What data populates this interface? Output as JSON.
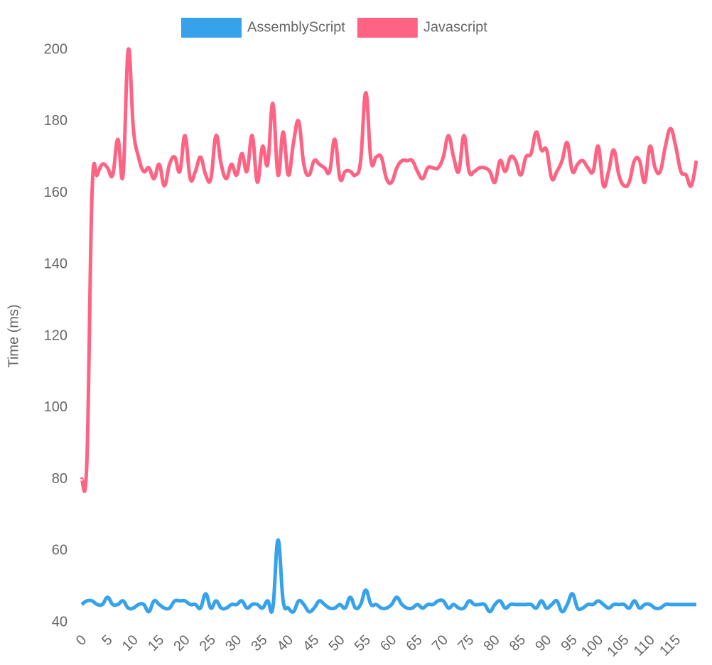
{
  "chart_data": {
    "type": "line",
    "y_label": "Time (ms)",
    "x": [
      0,
      1,
      2,
      3,
      4,
      5,
      6,
      7,
      8,
      9,
      10,
      11,
      12,
      13,
      14,
      15,
      16,
      17,
      18,
      19,
      20,
      21,
      22,
      23,
      24,
      25,
      26,
      27,
      28,
      29,
      30,
      31,
      32,
      33,
      34,
      35,
      36,
      37,
      38,
      39,
      40,
      41,
      42,
      43,
      44,
      45,
      46,
      47,
      48,
      49,
      50,
      51,
      52,
      53,
      54,
      55,
      56,
      57,
      58,
      59,
      60,
      61,
      62,
      63,
      64,
      65,
      66,
      67,
      68,
      69,
      70,
      71,
      72,
      73,
      74,
      75,
      76,
      77,
      78,
      79,
      80,
      81,
      82,
      83,
      84,
      85,
      86,
      87,
      88,
      89,
      90,
      91,
      92,
      93,
      94,
      95,
      96,
      97,
      98,
      99,
      100,
      101,
      102,
      103,
      104,
      105,
      106,
      107,
      108,
      109,
      110,
      111,
      112,
      113,
      114,
      115,
      116,
      117,
      118,
      119
    ],
    "xlim": [
      0,
      119
    ],
    "xticks": [
      0,
      5,
      10,
      15,
      20,
      25,
      30,
      35,
      40,
      45,
      50,
      55,
      60,
      65,
      70,
      75,
      80,
      85,
      90,
      95,
      100,
      105,
      110,
      115
    ],
    "ylim": [
      40,
      200
    ],
    "yticks": [
      40,
      60,
      80,
      100,
      120,
      140,
      160,
      180,
      200
    ],
    "grid": false,
    "legend": "top",
    "series": [
      {
        "name": "AssemblyScript",
        "color": "#36a2eb",
        "values": [
          45,
          46,
          46,
          45,
          45,
          47,
          45,
          45,
          46,
          44,
          44,
          45,
          45,
          43,
          46,
          45,
          44,
          44,
          46,
          46,
          46,
          45,
          45,
          44,
          48,
          44,
          46,
          44,
          44,
          45,
          45,
          46,
          44,
          45,
          45,
          44,
          46,
          44,
          63,
          46,
          44,
          43,
          46,
          45,
          43,
          44,
          46,
          45,
          44,
          44,
          45,
          44,
          47,
          44,
          45,
          49,
          45,
          45,
          44,
          44,
          45,
          47,
          45,
          44,
          44,
          45,
          44,
          45,
          45,
          46,
          46,
          44,
          45,
          44,
          44,
          46,
          45,
          45,
          45,
          43,
          45,
          46,
          44,
          45,
          45,
          45,
          45,
          45,
          44,
          46,
          44,
          45,
          46,
          43,
          45,
          48,
          44,
          44,
          45,
          45,
          46,
          45,
          44,
          45,
          45,
          45,
          44,
          46,
          44,
          45,
          45,
          44,
          44,
          45,
          45,
          45,
          45,
          45,
          45,
          45
        ]
      },
      {
        "name": "Javascript",
        "color": "#ff6384",
        "values": [
          80,
          85,
          160,
          165,
          168,
          167,
          165,
          175,
          165,
          200,
          178,
          170,
          166,
          167,
          164,
          168,
          162,
          168,
          170,
          166,
          176,
          164,
          166,
          170,
          165,
          164,
          176,
          168,
          164,
          168,
          165,
          171,
          166,
          176,
          163,
          173,
          168,
          185,
          165,
          177,
          165,
          174,
          180,
          168,
          165,
          169,
          168,
          167,
          166,
          175,
          164,
          166,
          166,
          165,
          169,
          188,
          169,
          170,
          170,
          164,
          163,
          167,
          169,
          169,
          169,
          166,
          164,
          167,
          167,
          167,
          170,
          176,
          170,
          166,
          176,
          166,
          166,
          167,
          167,
          166,
          163,
          169,
          166,
          170,
          169,
          165,
          170,
          171,
          177,
          172,
          172,
          164,
          166,
          169,
          174,
          166,
          168,
          169,
          167,
          166,
          173,
          162,
          166,
          172,
          165,
          162,
          163,
          169,
          169,
          163,
          173,
          167,
          166,
          173,
          178,
          173,
          166,
          165,
          162,
          169
        ]
      }
    ]
  }
}
